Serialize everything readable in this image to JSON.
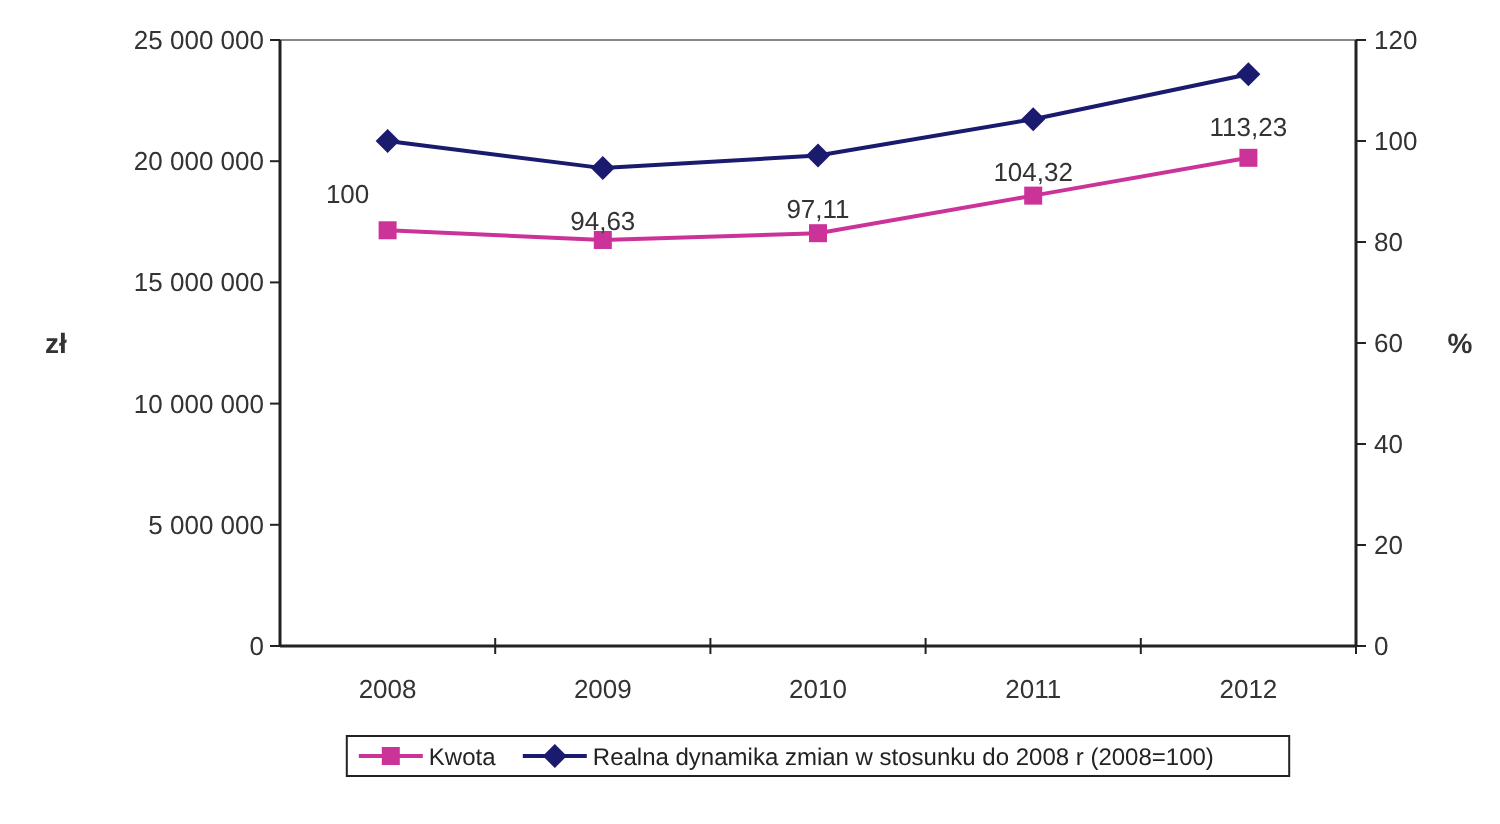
{
  "chart_data": {
    "type": "line",
    "categories": [
      "2008",
      "2009",
      "2010",
      "2011",
      "2012"
    ],
    "ylabel": "zł",
    "y2label": "%",
    "ylim": [
      0,
      25000000
    ],
    "yticks": [
      {
        "value": 0,
        "label": "0"
      },
      {
        "value": 5000000,
        "label": "5 000 000"
      },
      {
        "value": 10000000,
        "label": "10 000 000"
      },
      {
        "value": 15000000,
        "label": "15 000 000"
      },
      {
        "value": 20000000,
        "label": "20 000 000"
      },
      {
        "value": 25000000,
        "label": "25 000 000"
      }
    ],
    "y2lim": [
      0,
      120
    ],
    "y2ticks": [
      0,
      20,
      40,
      60,
      80,
      100,
      120
    ],
    "series": [
      {
        "name": "Kwota",
        "color": "#cc3399",
        "marker": "square",
        "values": [
          17150000,
          16750000,
          17030000,
          18580000,
          20140000
        ]
      },
      {
        "name": "Realna dynamika zmian w stosunku do 2008 r (2008=100)",
        "color": "#1a1a6e",
        "marker": "diamond",
        "axis": "y2",
        "values": [
          100,
          94.63,
          97.11,
          104.32,
          113.23
        ],
        "value_labels": [
          "100",
          "94,63",
          "97,11",
          "104,32",
          "113,23"
        ]
      }
    ],
    "grid": false,
    "legend": "bottom"
  }
}
